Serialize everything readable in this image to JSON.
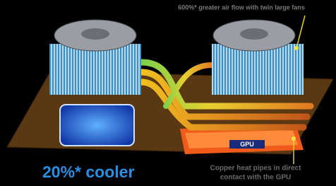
{
  "annotations": {
    "airflow": "600%* greater air flow with twin large fans",
    "gpu": "GPU",
    "cooler": "20%* cooler",
    "pipes_caption": [
      "Copper heat pipes in direct",
      "contact with the GPU"
    ]
  }
}
